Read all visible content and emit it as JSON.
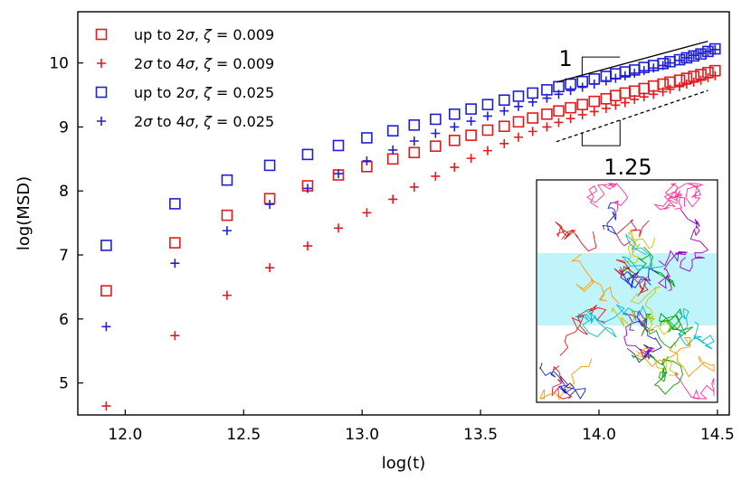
{
  "chart_data": {
    "type": "scatter",
    "xlabel": "log(t)",
    "ylabel": "log(MSD)",
    "xlim": [
      11.8,
      14.55
    ],
    "ylim": [
      4.5,
      10.8
    ],
    "xticks": [
      12.0,
      12.5,
      13.0,
      13.5,
      14.0,
      14.5
    ],
    "xtick_labels": [
      "12.0",
      "12.5",
      "13.0",
      "13.5",
      "14.0",
      "14.5"
    ],
    "yticks": [
      5,
      6,
      7,
      8,
      9,
      10
    ],
    "ytick_labels": [
      "5",
      "6",
      "7",
      "8",
      "9",
      "10"
    ],
    "legend_position": "top-left",
    "series": [
      {
        "name": "up to 2σ, ζ = 0.009",
        "label_parts": [
          "up to 2",
          "σ",
          ", ",
          "ζ",
          " = 0.009"
        ],
        "marker": "square",
        "color": "#e41a1c",
        "x": [
          11.92,
          12.21,
          12.43,
          12.61,
          12.77,
          12.9,
          13.02,
          13.13,
          13.22,
          13.31,
          13.39,
          13.46,
          13.53,
          13.6,
          13.66,
          13.72,
          13.78,
          13.83,
          13.88,
          13.93,
          13.98,
          14.03,
          14.07,
          14.11,
          14.15,
          14.19,
          14.23,
          14.27,
          14.3,
          14.34,
          14.37,
          14.4,
          14.43,
          14.46,
          14.49
        ],
        "y": [
          6.44,
          7.19,
          7.62,
          7.88,
          8.08,
          8.25,
          8.38,
          8.5,
          8.6,
          8.7,
          8.79,
          8.87,
          8.95,
          9.01,
          9.08,
          9.14,
          9.2,
          9.25,
          9.3,
          9.35,
          9.4,
          9.44,
          9.49,
          9.53,
          9.56,
          9.6,
          9.64,
          9.67,
          9.7,
          9.73,
          9.76,
          9.79,
          9.82,
          9.85,
          9.88
        ]
      },
      {
        "name": "2σ to 4σ, ζ = 0.009",
        "label_parts": [
          "2",
          "σ",
          " to 4",
          "σ",
          ", ",
          "ζ",
          " = 0.009"
        ],
        "marker": "plus",
        "color": "#e41a1c",
        "x": [
          11.92,
          12.21,
          12.43,
          12.61,
          12.77,
          12.9,
          13.02,
          13.13,
          13.22,
          13.31,
          13.39,
          13.46,
          13.53,
          13.6,
          13.66,
          13.72,
          13.78,
          13.83,
          13.88,
          13.93,
          13.98,
          14.03,
          14.07,
          14.11,
          14.15,
          14.19,
          14.23,
          14.27,
          14.3,
          14.34,
          14.37,
          14.4,
          14.43,
          14.46,
          14.49
        ],
        "y": [
          4.64,
          5.74,
          6.37,
          6.8,
          7.14,
          7.42,
          7.66,
          7.87,
          8.06,
          8.23,
          8.37,
          8.51,
          8.63,
          8.74,
          8.84,
          8.93,
          9.0,
          9.07,
          9.13,
          9.19,
          9.24,
          9.29,
          9.34,
          9.38,
          9.43,
          9.47,
          9.51,
          9.55,
          9.59,
          9.63,
          9.67,
          9.7,
          9.73,
          9.77,
          9.8
        ]
      },
      {
        "name": "up to 2σ, ζ = 0.025",
        "label_parts": [
          "up to 2",
          "σ",
          ", ",
          "ζ",
          " = 0.025"
        ],
        "marker": "square",
        "color": "#1f1fd9",
        "x": [
          11.92,
          12.21,
          12.43,
          12.61,
          12.77,
          12.9,
          13.02,
          13.13,
          13.22,
          13.31,
          13.39,
          13.46,
          13.53,
          13.6,
          13.66,
          13.72,
          13.78,
          13.83,
          13.88,
          13.93,
          13.98,
          14.03,
          14.07,
          14.11,
          14.15,
          14.19,
          14.23,
          14.27,
          14.3,
          14.34,
          14.37,
          14.4,
          14.43,
          14.46,
          14.49
        ],
        "y": [
          7.15,
          7.8,
          8.17,
          8.4,
          8.57,
          8.71,
          8.83,
          8.94,
          9.03,
          9.12,
          9.2,
          9.28,
          9.35,
          9.42,
          9.48,
          9.53,
          9.58,
          9.63,
          9.67,
          9.71,
          9.75,
          9.79,
          9.83,
          9.86,
          9.89,
          9.93,
          9.96,
          9.99,
          10.02,
          10.05,
          10.08,
          10.11,
          10.14,
          10.18,
          10.22
        ]
      },
      {
        "name": "2σ to 4σ, ζ = 0.025",
        "label_parts": [
          "2",
          "σ",
          " to 4",
          "σ",
          ", ",
          "ζ",
          " = 0.025"
        ],
        "marker": "plus",
        "color": "#1f1fd9",
        "x": [
          11.92,
          12.21,
          12.43,
          12.61,
          12.77,
          12.9,
          13.02,
          13.13,
          13.22,
          13.31,
          13.39,
          13.46,
          13.53,
          13.6,
          13.66,
          13.72,
          13.78,
          13.83,
          13.88,
          13.93,
          13.98,
          14.03,
          14.07,
          14.11,
          14.15,
          14.19,
          14.23,
          14.27,
          14.3,
          14.34,
          14.37,
          14.4,
          14.43,
          14.46,
          14.49
        ],
        "y": [
          5.88,
          6.87,
          7.38,
          7.79,
          8.04,
          8.27,
          8.47,
          8.64,
          8.78,
          8.9,
          9.0,
          9.09,
          9.17,
          9.25,
          9.32,
          9.39,
          9.45,
          9.51,
          9.57,
          9.62,
          9.67,
          9.72,
          9.76,
          9.8,
          9.84,
          9.88,
          9.92,
          9.96,
          10.0,
          10.04,
          10.08,
          10.12,
          10.15,
          10.18,
          10.21
        ]
      }
    ],
    "slope_annotations": [
      {
        "label": "1",
        "slope": 1.0,
        "line_style": "solid",
        "x_range": [
          13.82,
          14.46
        ],
        "y_start": 9.7,
        "marker_at": "top"
      },
      {
        "label": "1.25",
        "slope": 1.25,
        "line_style": "dashed",
        "x_range": [
          13.82,
          14.46
        ],
        "y_start": 8.77,
        "marker_at": "bottom"
      }
    ],
    "inset": {
      "description_colors": [
        "#e41a1c",
        "#1f1fd9",
        "#00a000",
        "#ff9900",
        "#9900cc",
        "#00bcd4",
        "#c8c800",
        "#ff3399"
      ],
      "band_color": "#bff5fa"
    }
  }
}
